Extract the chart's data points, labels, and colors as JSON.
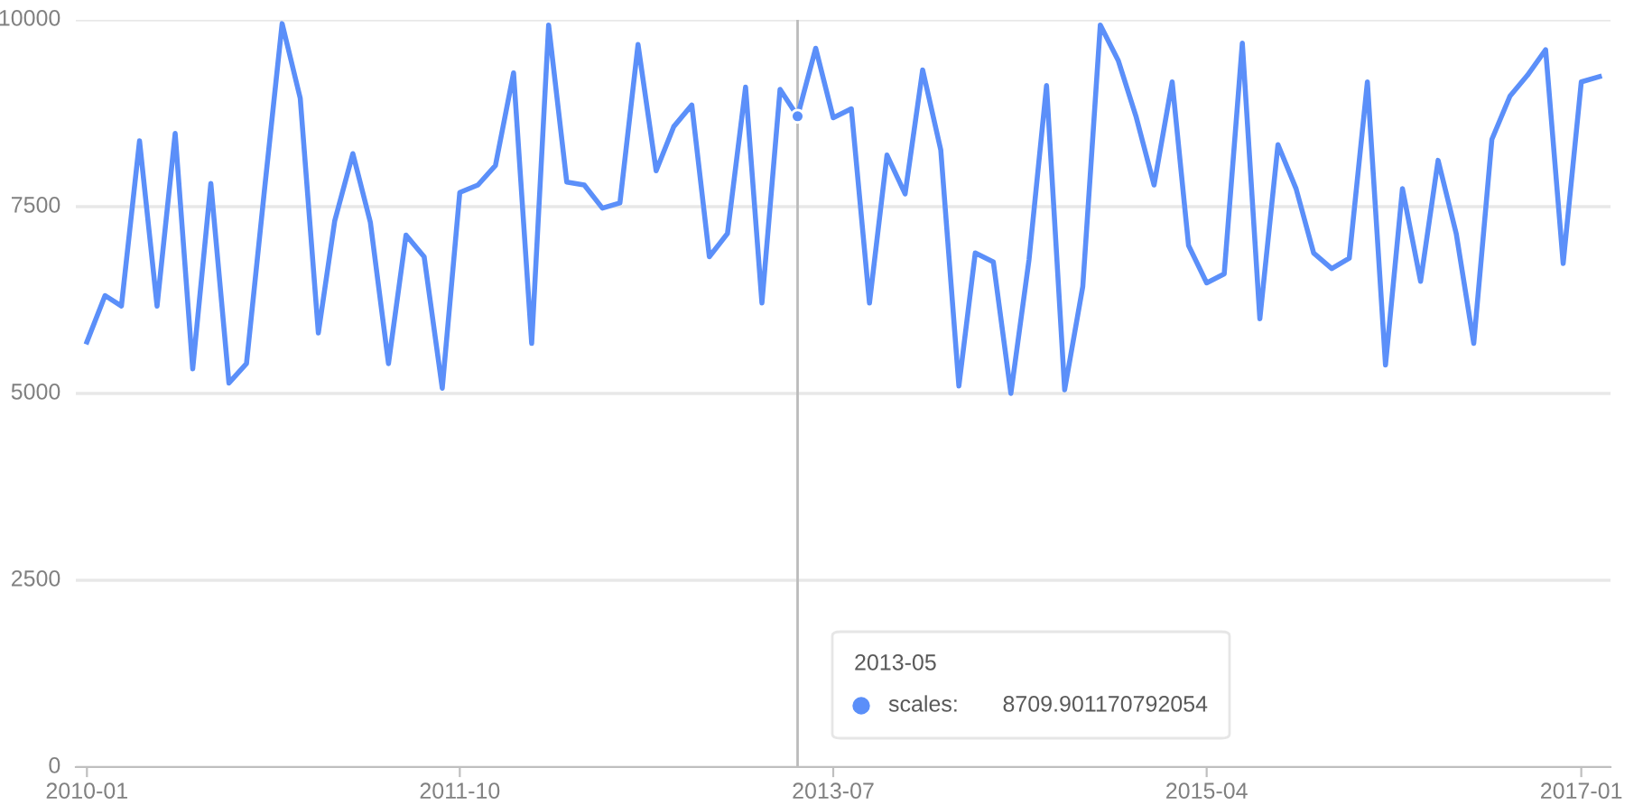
{
  "chart_data": {
    "type": "line",
    "x": [
      "2010-01",
      "2010-02",
      "2010-03",
      "2010-04",
      "2010-05",
      "2010-06",
      "2010-07",
      "2010-08",
      "2010-09",
      "2010-10",
      "2010-11",
      "2010-12",
      "2011-01",
      "2011-02",
      "2011-03",
      "2011-04",
      "2011-05",
      "2011-06",
      "2011-07",
      "2011-08",
      "2011-09",
      "2011-10",
      "2011-11",
      "2011-12",
      "2012-01",
      "2012-02",
      "2012-03",
      "2012-04",
      "2012-05",
      "2012-06",
      "2012-07",
      "2012-08",
      "2012-09",
      "2012-10",
      "2012-11",
      "2012-12",
      "2013-01",
      "2013-02",
      "2013-03",
      "2013-04",
      "2013-05",
      "2013-06",
      "2013-07",
      "2013-08",
      "2013-09",
      "2013-10",
      "2013-11",
      "2013-12",
      "2014-01",
      "2014-02",
      "2014-03",
      "2014-04",
      "2014-05",
      "2014-06",
      "2014-07",
      "2014-08",
      "2014-09",
      "2014-10",
      "2014-11",
      "2014-12",
      "2015-01",
      "2015-02",
      "2015-03",
      "2015-04",
      "2015-05",
      "2015-06",
      "2015-07",
      "2015-08",
      "2015-09",
      "2015-10",
      "2015-11",
      "2015-12",
      "2016-01",
      "2016-02",
      "2016-03",
      "2016-04",
      "2016-05",
      "2016-06",
      "2016-07",
      "2016-08",
      "2016-09",
      "2016-10",
      "2016-11",
      "2016-12",
      "2017-01",
      "2017-02"
    ],
    "series": [
      {
        "name": "scales:",
        "color": "#5b8ff9",
        "values": [
          5690,
          6310,
          6170,
          8380,
          6170,
          8480,
          5330,
          7810,
          5140,
          5400,
          7740,
          9950,
          8950,
          5810,
          7310,
          8210,
          7290,
          5400,
          7120,
          6830,
          5070,
          7690,
          7790,
          8050,
          9290,
          5670,
          9930,
          7830,
          7790,
          7480,
          7550,
          9670,
          7980,
          8570,
          8860,
          6830,
          7140,
          9100,
          6210,
          9070,
          8710,
          9620,
          8690,
          8810,
          6210,
          8190,
          7670,
          9330,
          8260,
          5100,
          6880,
          6760,
          5000,
          6790,
          9120,
          5050,
          6430,
          9930,
          9450,
          8710,
          7790,
          9170,
          6980,
          6480,
          6600,
          9690,
          6000,
          8330,
          7740,
          6880,
          6670,
          6810,
          9170,
          5380,
          7740,
          6500,
          8120,
          7140,
          5670,
          8400,
          8980,
          9260,
          9600,
          6740,
          9170,
          9240
        ]
      }
    ],
    "xlim": [
      "2009-12-13",
      "2017-02-20"
    ],
    "xticks": [
      "2010-01",
      "2011-10",
      "2013-07",
      "2015-04",
      "2017-01"
    ],
    "ylim": [
      0,
      10000
    ],
    "yticks": [
      0,
      2500,
      5000,
      7500,
      10000
    ],
    "grid": "y",
    "marker": "none",
    "line_style": "solid",
    "legend": "bottom",
    "ref_lines": [
      {
        "axis": "x",
        "value": "2013-05",
        "color": "#bbbbbb"
      }
    ],
    "annotations": [
      "2013-05",
      "8709.901170792054"
    ]
  }
}
